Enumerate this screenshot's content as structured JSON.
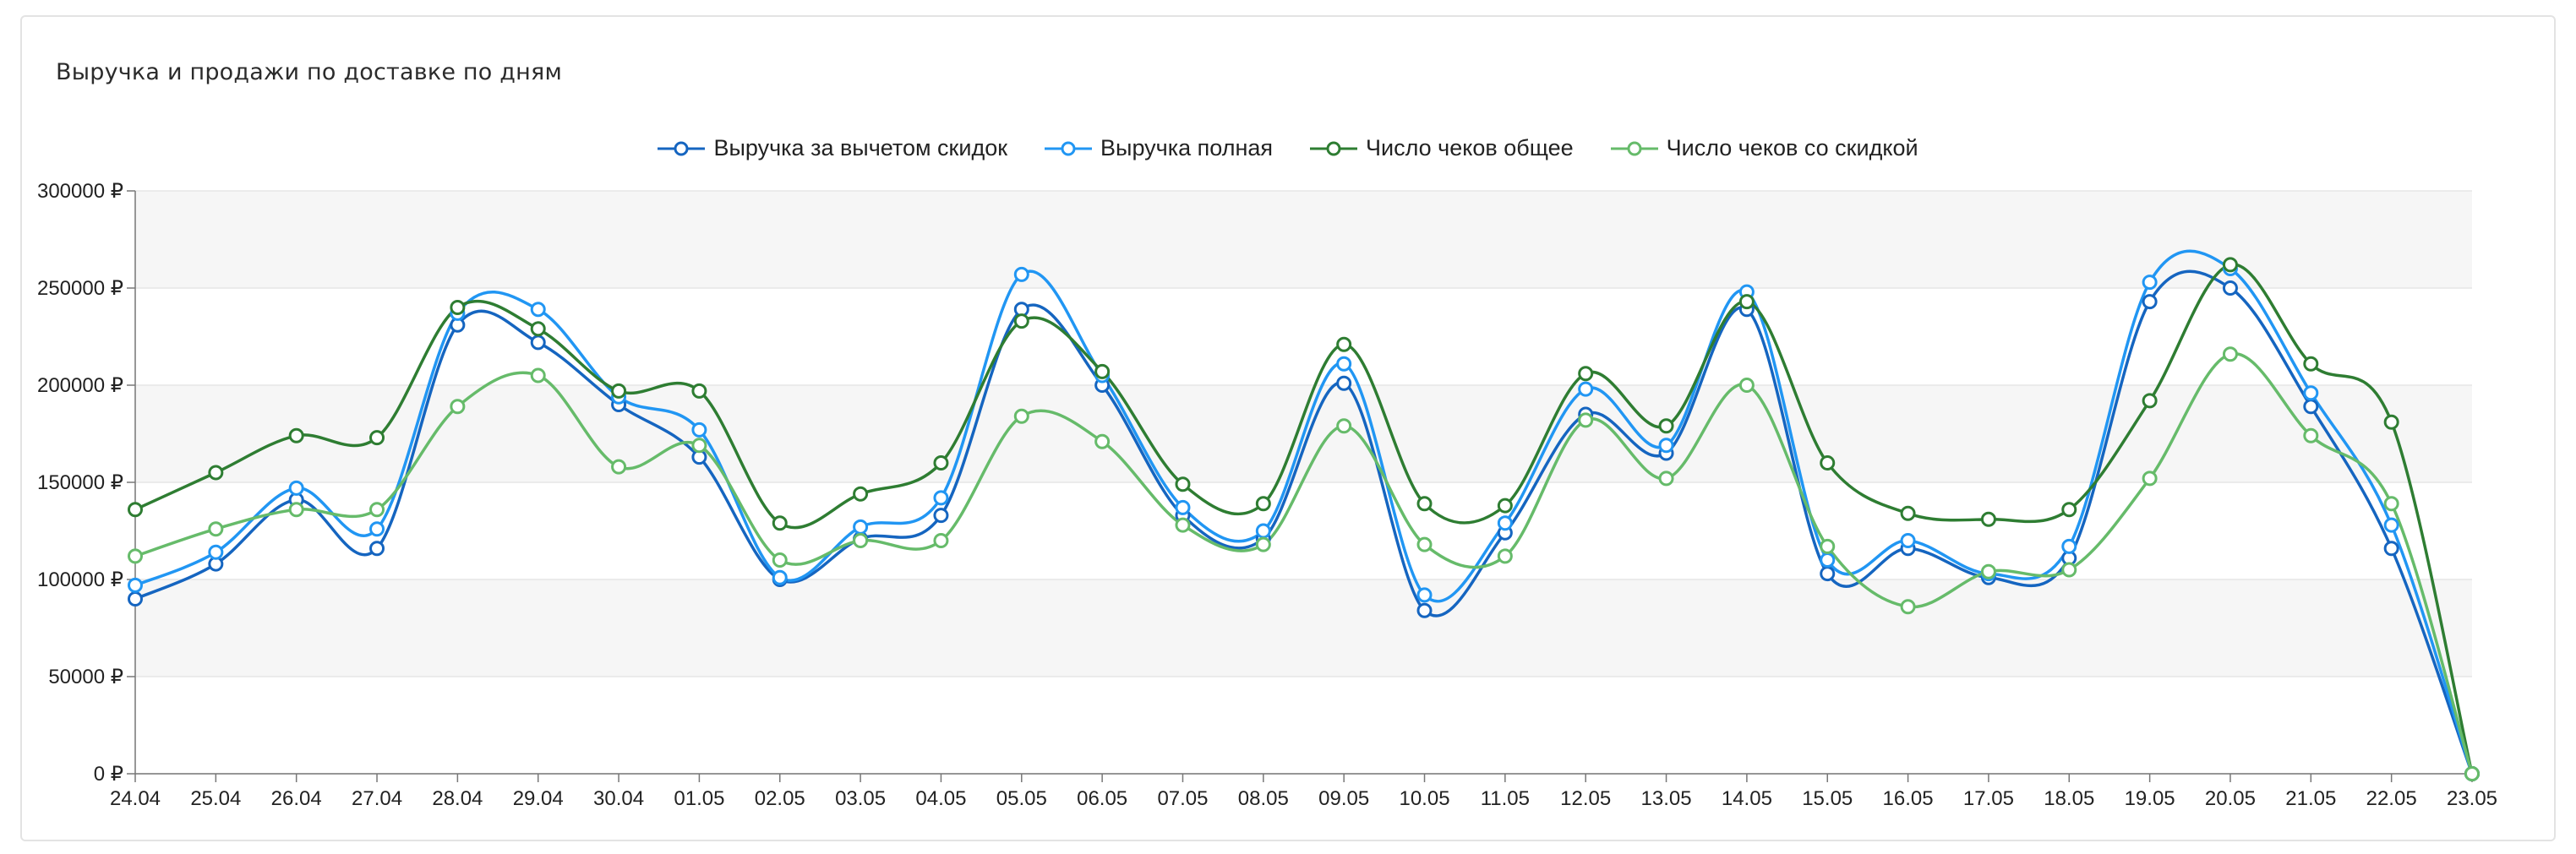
{
  "title": "Выручка и продажи по доставке по дням",
  "chart_data": {
    "type": "line",
    "title": "Выручка и продажи по доставке по дням",
    "xlabel": "",
    "ylabel": "",
    "categories": [
      "24.04",
      "25.04",
      "26.04",
      "27.04",
      "28.04",
      "29.04",
      "30.04",
      "01.05",
      "02.05",
      "03.05",
      "04.05",
      "05.05",
      "06.05",
      "07.05",
      "08.05",
      "09.05",
      "10.05",
      "11.05",
      "12.05",
      "13.05",
      "14.05",
      "15.05",
      "16.05",
      "17.05",
      "18.05",
      "19.05",
      "20.05",
      "21.05",
      "22.05",
      "23.05"
    ],
    "ylim": [
      0,
      300000
    ],
    "yticks": [
      {
        "value": 0,
        "label": "0 ₽"
      },
      {
        "value": 50000,
        "label": "50000 ₽"
      },
      {
        "value": 100000,
        "label": "100000 ₽"
      },
      {
        "value": 150000,
        "label": "150000 ₽"
      },
      {
        "value": 200000,
        "label": "200000 ₽"
      },
      {
        "value": 250000,
        "label": "250000 ₽"
      },
      {
        "value": 300000,
        "label": "300000 ₽"
      }
    ],
    "grid": true,
    "legend_position": "top-center",
    "series": [
      {
        "name": "Выручка за вычетом скидок",
        "color": "#1565c0",
        "values": [
          90000,
          108000,
          141000,
          116000,
          231000,
          222000,
          190000,
          163000,
          100000,
          121000,
          133000,
          239000,
          200000,
          133000,
          121000,
          201000,
          84000,
          124000,
          185000,
          165000,
          239000,
          103000,
          116000,
          101000,
          111000,
          243000,
          250000,
          189000,
          116000,
          0
        ]
      },
      {
        "name": "Выручка полная",
        "color": "#2196f3",
        "values": [
          97000,
          114000,
          147000,
          126000,
          237000,
          239000,
          194000,
          177000,
          101000,
          127000,
          142000,
          257000,
          205000,
          137000,
          125000,
          211000,
          92000,
          129000,
          198000,
          169000,
          248000,
          110000,
          120000,
          103000,
          117000,
          253000,
          260000,
          196000,
          128000,
          0
        ]
      },
      {
        "name": "Число чеков общее",
        "color": "#2e7d32",
        "values": [
          136000,
          155000,
          174000,
          173000,
          240000,
          229000,
          197000,
          197000,
          129000,
          144000,
          160000,
          233000,
          207000,
          149000,
          139000,
          221000,
          139000,
          138000,
          206000,
          179000,
          243000,
          160000,
          134000,
          131000,
          136000,
          192000,
          262000,
          211000,
          181000,
          0
        ]
      },
      {
        "name": "Число чеков со скидкой",
        "color": "#66bb6a",
        "values": [
          112000,
          126000,
          136000,
          136000,
          189000,
          205000,
          158000,
          169000,
          110000,
          120000,
          120000,
          184000,
          171000,
          128000,
          118000,
          179000,
          118000,
          112000,
          182000,
          152000,
          200000,
          117000,
          86000,
          104000,
          105000,
          152000,
          216000,
          174000,
          139000,
          0
        ]
      }
    ]
  }
}
